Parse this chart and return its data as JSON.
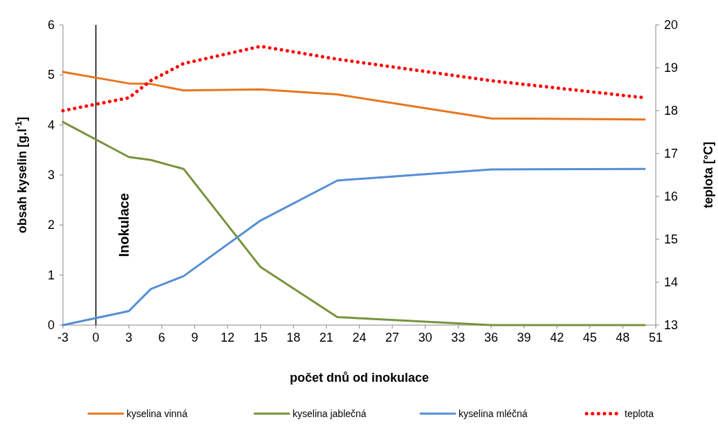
{
  "chart_data": {
    "type": "line",
    "xlabel": "počet dnů od inokulace",
    "ylabel": "obsah kyselin [g.l$^{-1}$]",
    "y2label": "teplota [°C]",
    "x": [
      -3,
      3,
      5,
      8,
      15,
      22,
      36,
      50
    ],
    "xlim": [
      -3,
      51
    ],
    "xticks": [
      -3,
      0,
      3,
      6,
      9,
      12,
      15,
      18,
      21,
      24,
      27,
      30,
      33,
      36,
      39,
      42,
      45,
      48,
      51
    ],
    "ylim": [
      0,
      6
    ],
    "yticks": [
      0,
      1,
      2,
      3,
      4,
      5,
      6
    ],
    "y2lim": [
      13,
      20
    ],
    "y2ticks": [
      13,
      14,
      15,
      16,
      17,
      18,
      19,
      20
    ],
    "grid": false,
    "legend": "bottom",
    "marker": "none",
    "ref_lines": [
      {
        "axis": "x",
        "value": 0,
        "label": "Inokulace",
        "color": "#000000"
      }
    ],
    "series": [
      {
        "name": "kyselina vinná",
        "color": "#e8761e",
        "values": [
          5.06,
          4.83,
          4.82,
          4.69,
          4.71,
          4.61,
          4.13,
          4.11
        ],
        "line_style": "solid"
      },
      {
        "name": "kyselina jablečná",
        "color": "#77933c",
        "values": [
          4.06,
          3.36,
          3.3,
          3.12,
          1.16,
          0.16,
          0,
          0
        ],
        "line_style": "solid"
      },
      {
        "name": "kyselina mléčná",
        "color": "#558ed5",
        "values": [
          0,
          0.28,
          0.72,
          0.98,
          2.09,
          2.89,
          3.11,
          3.12
        ],
        "line_style": "solid"
      },
      {
        "name": "teplota",
        "color": "#ff0000",
        "values": [
          18.0,
          18.3,
          18.7,
          19.1,
          19.5,
          19.2,
          18.7,
          18.3
        ],
        "axis": "y2",
        "line_style": "dotted"
      }
    ]
  }
}
